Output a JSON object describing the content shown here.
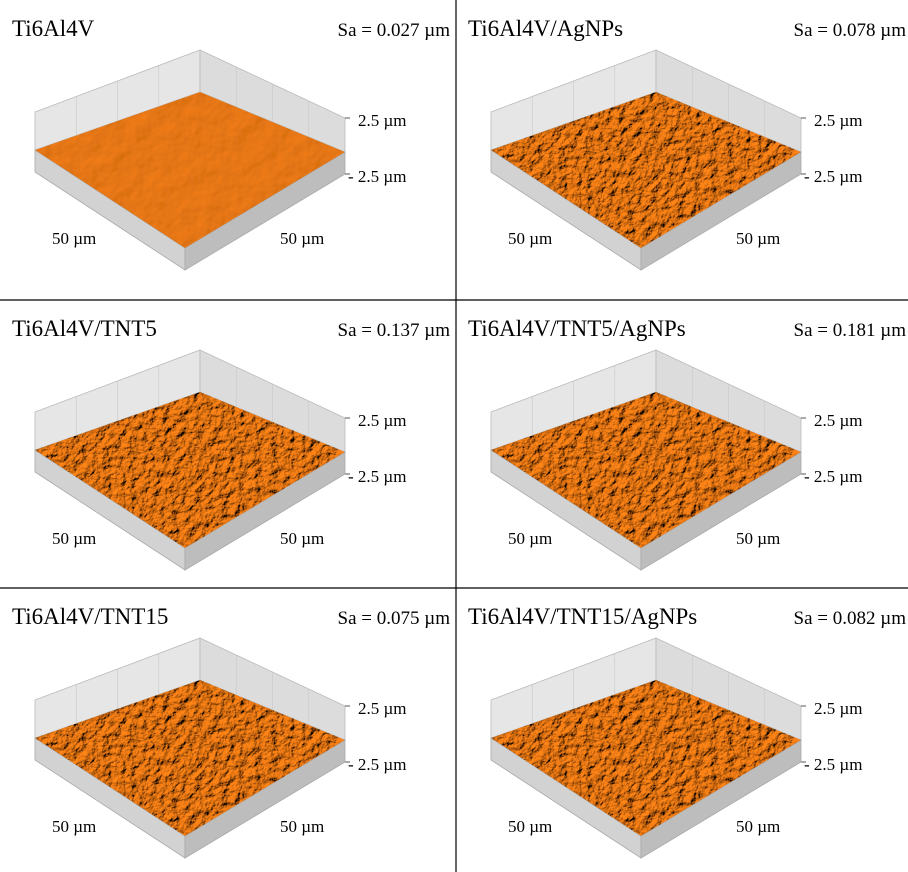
{
  "panels": [
    {
      "title": "Ti6Al4V",
      "sa": "Sa = 0.027 µm",
      "z_max": "2.5 µm",
      "z_min": "- 2.5 µm",
      "x_label": "50 µm",
      "y_label": "50 µm"
    },
    {
      "title": "Ti6Al4V/AgNPs",
      "sa": "Sa = 0.078 µm",
      "z_max": "2.5 µm",
      "z_min": "- 2.5 µm",
      "x_label": "50 µm",
      "y_label": "50 µm"
    },
    {
      "title": "Ti6Al4V/TNT5",
      "sa": "Sa = 0.137 µm",
      "z_max": "2.5 µm",
      "z_min": "- 2.5 µm",
      "x_label": "50 µm",
      "y_label": "50 µm"
    },
    {
      "title": "Ti6Al4V/TNT5/AgNPs",
      "sa": "Sa = 0.181 µm",
      "z_max": "2.5 µm",
      "z_min": "- 2.5 µm",
      "x_label": "50 µm",
      "y_label": "50 µm"
    },
    {
      "title": "Ti6Al4V/TNT15",
      "sa": "Sa = 0.075 µm",
      "z_max": "2.5 µm",
      "z_min": "- 2.5 µm",
      "x_label": "50 µm",
      "y_label": "50 µm"
    },
    {
      "title": "Ti6Al4V/TNT15/AgNPs",
      "sa": "Sa = 0.082 µm",
      "z_max": "2.5 µm",
      "z_min": "- 2.5 µm",
      "x_label": "50 µm",
      "y_label": "50 µm"
    }
  ]
}
